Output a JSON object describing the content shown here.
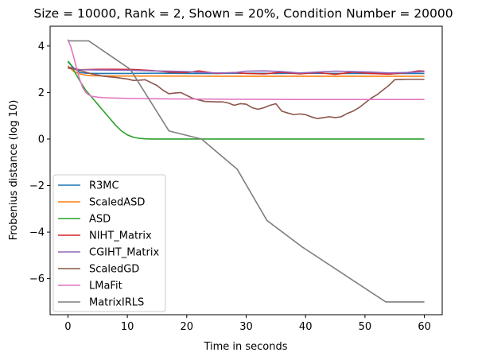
{
  "chart_data": {
    "type": "line",
    "title": "Size = 10000, Rank = 2, Shown = 20%, Condition Number = 20000",
    "xlabel": "Time in seconds",
    "ylabel": "Frobenius distance (log 10)",
    "xlim": [
      -3,
      63
    ],
    "ylim": [
      -7.55,
      4.85
    ],
    "xticks": [
      0,
      10,
      20,
      30,
      40,
      50,
      60
    ],
    "yticks": [
      -6,
      -4,
      -2,
      0,
      2,
      4
    ],
    "xtick_labels": [
      "0",
      "10",
      "20",
      "30",
      "40",
      "50",
      "60"
    ],
    "ytick_labels": [
      "−6",
      "−4",
      "−2",
      "0",
      "2",
      "4"
    ],
    "grid": false,
    "legend_position": "lower-left",
    "series": [
      {
        "name": "R3MC",
        "color": "#1f77b4",
        "x": [
          0,
          1,
          2,
          3,
          5,
          10,
          15,
          20,
          25,
          30,
          35,
          40,
          45,
          50,
          55,
          60
        ],
        "y": [
          3.32,
          3.05,
          2.86,
          2.83,
          2.82,
          2.82,
          2.83,
          2.82,
          2.82,
          2.83,
          2.82,
          2.83,
          2.82,
          2.82,
          2.82,
          2.82
        ]
      },
      {
        "name": "ScaledASD",
        "color": "#ff7f0e",
        "x": [
          0,
          1,
          2,
          3,
          4,
          8,
          15,
          25,
          35,
          45,
          55,
          60
        ],
        "y": [
          3.15,
          2.9,
          2.8,
          2.75,
          2.72,
          2.71,
          2.71,
          2.7,
          2.7,
          2.7,
          2.7,
          2.7
        ]
      },
      {
        "name": "ASD",
        "color": "#2ca02c",
        "x": [
          0,
          0.5,
          1,
          2,
          3,
          4,
          5,
          6,
          7,
          8,
          9,
          10,
          11,
          12,
          13,
          14,
          16,
          20,
          30,
          40,
          50,
          60
        ],
        "y": [
          3.35,
          3.2,
          2.95,
          2.5,
          2.1,
          1.8,
          1.5,
          1.2,
          0.9,
          0.6,
          0.35,
          0.18,
          0.08,
          0.03,
          0.01,
          0.0,
          0.0,
          0.0,
          0.0,
          0.0,
          0.0,
          0.0
        ]
      },
      {
        "name": "NIHT_Matrix",
        "color": "#d62728",
        "x": [
          0,
          2,
          5,
          8,
          11,
          14,
          17,
          20,
          22,
          25,
          28,
          30,
          33,
          36,
          39,
          42,
          45,
          48,
          51,
          54,
          57,
          59,
          60
        ],
        "y": [
          3.05,
          2.98,
          3.0,
          3.0,
          2.99,
          2.95,
          2.88,
          2.86,
          2.93,
          2.82,
          2.86,
          2.82,
          2.8,
          2.87,
          2.8,
          2.86,
          2.78,
          2.88,
          2.82,
          2.79,
          2.85,
          2.93,
          2.92
        ]
      },
      {
        "name": "CGIHT_Matrix",
        "color": "#9467bd",
        "x": [
          0,
          2,
          5,
          8,
          11,
          14,
          17,
          20,
          23,
          25,
          28,
          30,
          33,
          36,
          39,
          42,
          45,
          48,
          51,
          54,
          57,
          60
        ],
        "y": [
          3.1,
          2.98,
          2.97,
          2.96,
          2.95,
          2.93,
          2.92,
          2.9,
          2.86,
          2.84,
          2.85,
          2.92,
          2.93,
          2.9,
          2.84,
          2.88,
          2.92,
          2.9,
          2.88,
          2.84,
          2.86,
          2.9
        ]
      },
      {
        "name": "ScaledGD",
        "color": "#8c564b",
        "x": [
          0,
          2,
          4,
          6,
          8,
          10,
          11,
          12,
          13,
          15,
          16,
          17,
          18,
          19,
          21,
          23,
          25,
          26,
          27,
          28,
          29,
          30,
          31,
          32,
          33,
          34,
          35,
          36,
          37,
          38,
          39,
          40,
          41,
          42,
          43,
          44,
          45,
          46,
          47,
          48,
          49,
          50,
          51,
          52,
          53,
          54,
          55,
          57,
          60
        ],
        "y": [
          3.08,
          2.95,
          2.8,
          2.7,
          2.65,
          2.58,
          2.52,
          2.53,
          2.55,
          2.3,
          2.1,
          1.95,
          1.98,
          2.0,
          1.75,
          1.62,
          1.6,
          1.6,
          1.55,
          1.45,
          1.52,
          1.5,
          1.35,
          1.28,
          1.35,
          1.45,
          1.52,
          1.2,
          1.12,
          1.05,
          1.08,
          1.05,
          0.95,
          0.88,
          0.92,
          0.96,
          0.92,
          0.96,
          1.1,
          1.2,
          1.35,
          1.55,
          1.75,
          1.9,
          2.1,
          2.3,
          2.55,
          2.57,
          2.57
        ]
      },
      {
        "name": "LMaFit",
        "color": "#e377c2",
        "x": [
          0,
          0.5,
          1,
          1.5,
          2,
          2.5,
          3,
          3.5,
          4,
          5,
          6,
          8,
          10,
          15,
          20,
          30,
          40,
          50,
          60
        ],
        "y": [
          4.28,
          3.95,
          3.5,
          3.0,
          2.55,
          2.2,
          2.0,
          1.9,
          1.84,
          1.8,
          1.78,
          1.76,
          1.75,
          1.73,
          1.72,
          1.71,
          1.7,
          1.7,
          1.7
        ]
      },
      {
        "name": "MatrixIRLS",
        "color": "#7f7f7f",
        "x": [
          0,
          3.5,
          10.5,
          17,
          22.5,
          28.5,
          33.5,
          39.5,
          53.5,
          60
        ],
        "y": [
          4.22,
          4.22,
          3.0,
          0.35,
          0.0,
          -1.3,
          -3.5,
          -4.65,
          -7.0,
          -7.0
        ]
      }
    ]
  }
}
